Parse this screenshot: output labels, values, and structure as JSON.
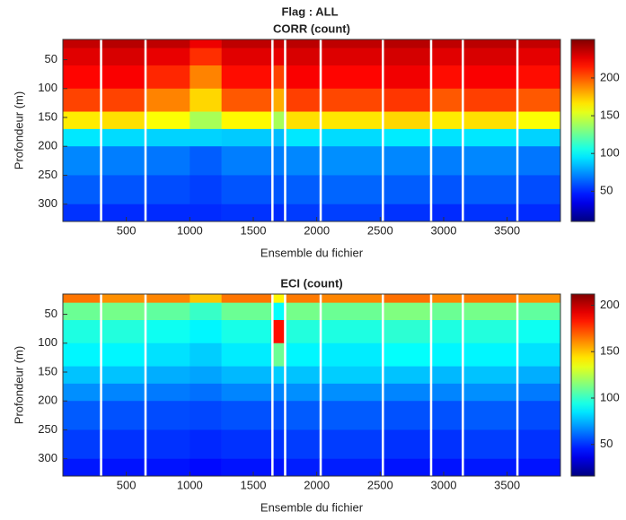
{
  "title": "Flag : ALL",
  "chart_data": [
    {
      "type": "heatmap",
      "title": "CORR (count)",
      "xlabel": "Ensemble du fichier",
      "ylabel": "Profondeur (m)",
      "colormap": "jet",
      "xlim": [
        0,
        3920
      ],
      "ylim": [
        15,
        330
      ],
      "clim": [
        10,
        251
      ],
      "xticks": [
        500,
        1000,
        1500,
        2000,
        2500,
        3000,
        3500
      ],
      "yticks": [
        50,
        100,
        150,
        200,
        250,
        300
      ],
      "cticks": [
        50,
        100,
        150,
        200
      ],
      "x": [
        0,
        290,
        310,
        640,
        660,
        1000,
        1250,
        1640,
        1660,
        1740,
        1760,
        2020,
        2040,
        2510,
        2530,
        2890,
        2910,
        3140,
        3160,
        3570,
        3590,
        3920
      ],
      "y": [
        15,
        30,
        60,
        100,
        140,
        170,
        200,
        250,
        300,
        330
      ],
      "z": [
        [
          235,
          null,
          238,
          null,
          236,
          225,
          236,
          null,
          234,
          null,
          237,
          null,
          236,
          null,
          238,
          null,
          236,
          null,
          237,
          null,
          235
        ],
        [
          228,
          null,
          230,
          null,
          226,
          210,
          228,
          null,
          226,
          null,
          230,
          null,
          229,
          null,
          231,
          null,
          228,
          null,
          230,
          null,
          227
        ],
        [
          220,
          null,
          222,
          null,
          212,
          190,
          218,
          null,
          205,
          null,
          222,
          null,
          220,
          null,
          224,
          null,
          218,
          null,
          222,
          null,
          218
        ],
        [
          205,
          null,
          205,
          null,
          190,
          170,
          200,
          null,
          180,
          null,
          206,
          null,
          204,
          null,
          208,
          null,
          200,
          null,
          206,
          null,
          200
        ],
        [
          165,
          null,
          168,
          null,
          160,
          140,
          162,
          null,
          140,
          null,
          168,
          null,
          166,
          null,
          170,
          null,
          165,
          null,
          168,
          null,
          160
        ],
        [
          95,
          null,
          92,
          null,
          90,
          90,
          88,
          null,
          85,
          null,
          95,
          null,
          92,
          null,
          96,
          null,
          94,
          null,
          95,
          null,
          90
        ],
        [
          72,
          null,
          70,
          null,
          68,
          62,
          70,
          null,
          70,
          null,
          72,
          null,
          74,
          null,
          72,
          null,
          70,
          null,
          72,
          null,
          68
        ],
        [
          62,
          null,
          60,
          null,
          58,
          55,
          60,
          null,
          60,
          null,
          62,
          null,
          64,
          null,
          62,
          null,
          60,
          null,
          62,
          null,
          58
        ],
        [
          52,
          null,
          50,
          null,
          50,
          50,
          52,
          null,
          50,
          null,
          54,
          null,
          55,
          null,
          52,
          null,
          50,
          null,
          52,
          null,
          50
        ]
      ]
    },
    {
      "type": "heatmap",
      "title": "ECI (count)",
      "xlabel": "Ensemble du fichier",
      "ylabel": "Profondeur (m)",
      "colormap": "jet",
      "xlim": [
        0,
        3920
      ],
      "ylim": [
        15,
        330
      ],
      "clim": [
        16,
        212
      ],
      "xticks": [
        500,
        1000,
        1500,
        2000,
        2500,
        3000,
        3500
      ],
      "yticks": [
        50,
        100,
        150,
        200,
        250,
        300
      ],
      "cticks": [
        50,
        100,
        150,
        200
      ],
      "x": [
        0,
        290,
        310,
        640,
        660,
        1000,
        1250,
        1640,
        1660,
        1740,
        1760,
        2020,
        2040,
        2510,
        2530,
        2890,
        2910,
        3140,
        3160,
        3570,
        3590,
        3920
      ],
      "y": [
        15,
        30,
        60,
        100,
        140,
        170,
        200,
        250,
        300,
        330
      ],
      "z": [
        [
          165,
          null,
          160,
          null,
          162,
          150,
          165,
          null,
          140,
          null,
          164,
          null,
          162,
          null,
          166,
          null,
          162,
          null,
          164,
          null,
          160
        ],
        [
          110,
          null,
          112,
          null,
          108,
          100,
          110,
          null,
          90,
          null,
          112,
          null,
          110,
          null,
          114,
          null,
          110,
          null,
          112,
          null,
          108
        ],
        [
          95,
          null,
          96,
          null,
          92,
          88,
          94,
          null,
          185,
          null,
          96,
          null,
          95,
          null,
          98,
          null,
          95,
          null,
          96,
          null,
          92
        ],
        [
          88,
          null,
          88,
          null,
          84,
          80,
          86,
          null,
          110,
          null,
          88,
          null,
          86,
          null,
          90,
          null,
          88,
          null,
          88,
          null,
          84
        ],
        [
          78,
          null,
          78,
          null,
          74,
          72,
          76,
          null,
          80,
          null,
          78,
          null,
          80,
          null,
          78,
          null,
          76,
          null,
          78,
          null,
          74
        ],
        [
          68,
          null,
          66,
          null,
          64,
          62,
          66,
          null,
          66,
          null,
          68,
          null,
          68,
          null,
          66,
          null,
          66,
          null,
          68,
          null,
          64
        ],
        [
          58,
          null,
          56,
          null,
          55,
          54,
          56,
          null,
          56,
          null,
          58,
          null,
          58,
          null,
          56,
          null,
          56,
          null,
          58,
          null,
          55
        ],
        [
          52,
          null,
          50,
          null,
          50,
          48,
          50,
          null,
          50,
          null,
          52,
          null,
          52,
          null,
          50,
          null,
          50,
          null,
          52,
          null,
          50
        ],
        [
          45,
          null,
          44,
          null,
          44,
          42,
          44,
          null,
          44,
          null,
          46,
          null,
          46,
          null,
          44,
          null,
          44,
          null,
          45,
          null,
          44
        ]
      ]
    }
  ]
}
